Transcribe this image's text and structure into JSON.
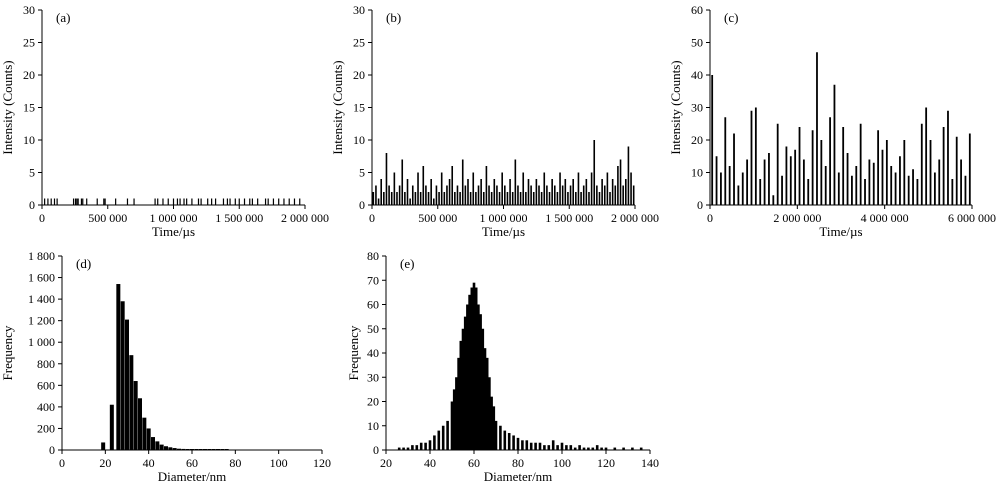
{
  "chart_data": [
    {
      "panel": "(a)",
      "type": "bar",
      "xlabel": "Time/µs",
      "ylabel": "Intensity (Counts)",
      "xlim": [
        0,
        2000000
      ],
      "ylim": [
        0,
        30
      ],
      "xticks": [
        0,
        500000,
        1000000,
        1500000,
        2000000
      ],
      "xtick_labels": [
        "0",
        "500 000",
        "1 000 000",
        "1 500 000",
        "2 000 000"
      ],
      "yticks": [
        0,
        5,
        10,
        15,
        20,
        25,
        30
      ],
      "ytick_labels": [
        "0",
        "5",
        "10",
        "15",
        "20",
        "25",
        "30"
      ],
      "x": [
        20000,
        45000,
        70000,
        95000,
        115000,
        240000,
        255000,
        265000,
        275000,
        300000,
        310000,
        340000,
        420000,
        470000,
        480000,
        560000,
        650000,
        700000,
        860000,
        880000,
        920000,
        960000,
        1000000,
        1030000,
        1050000,
        1080000,
        1100000,
        1140000,
        1190000,
        1210000,
        1260000,
        1290000,
        1320000,
        1380000,
        1410000,
        1430000,
        1470000,
        1500000,
        1540000,
        1580000,
        1600000,
        1640000,
        1700000,
        1720000,
        1760000,
        1800000,
        1840000,
        1880000,
        1920000,
        1960000
      ],
      "values": [
        1,
        1,
        1,
        1,
        1,
        1,
        1,
        1,
        1,
        1,
        1,
        1,
        1,
        1,
        1,
        1,
        1,
        1,
        1,
        1,
        1,
        1,
        1,
        1,
        1,
        1,
        1,
        1,
        1,
        1,
        1,
        1,
        1,
        1,
        1,
        1,
        1,
        1,
        1,
        1,
        1,
        1,
        1,
        1,
        1,
        1,
        1,
        1,
        1,
        1
      ]
    },
    {
      "panel": "(b)",
      "type": "bar",
      "xlabel": "Time/µs",
      "ylabel": "Intensity (Counts)",
      "xlim": [
        0,
        2000000
      ],
      "ylim": [
        0,
        30
      ],
      "xticks": [
        0,
        500000,
        1000000,
        1500000,
        2000000
      ],
      "xtick_labels": [
        "0",
        "500 000",
        "1 000 000",
        "1 500 000",
        "2 000 000"
      ],
      "yticks": [
        0,
        5,
        10,
        15,
        20,
        25,
        30
      ],
      "ytick_labels": [
        "0",
        "5",
        "10",
        "15",
        "20",
        "25",
        "30"
      ],
      "x": [
        10000,
        30000,
        50000,
        70000,
        90000,
        110000,
        130000,
        150000,
        170000,
        190000,
        210000,
        230000,
        250000,
        270000,
        290000,
        310000,
        330000,
        350000,
        370000,
        390000,
        410000,
        430000,
        450000,
        470000,
        490000,
        510000,
        530000,
        550000,
        570000,
        590000,
        610000,
        630000,
        650000,
        670000,
        690000,
        710000,
        730000,
        750000,
        770000,
        790000,
        810000,
        830000,
        850000,
        870000,
        890000,
        910000,
        930000,
        950000,
        970000,
        990000,
        1010000,
        1030000,
        1050000,
        1070000,
        1090000,
        1110000,
        1130000,
        1150000,
        1170000,
        1190000,
        1210000,
        1230000,
        1250000,
        1270000,
        1290000,
        1310000,
        1330000,
        1350000,
        1370000,
        1390000,
        1410000,
        1430000,
        1450000,
        1470000,
        1490000,
        1510000,
        1530000,
        1550000,
        1570000,
        1590000,
        1610000,
        1630000,
        1650000,
        1670000,
        1690000,
        1710000,
        1730000,
        1750000,
        1770000,
        1790000,
        1810000,
        1830000,
        1850000,
        1870000,
        1890000,
        1910000,
        1930000,
        1950000,
        1970000,
        1990000
      ],
      "values": [
        2,
        3,
        1,
        4,
        2,
        8,
        3,
        2,
        5,
        2,
        3,
        7,
        2,
        4,
        1,
        3,
        2,
        5,
        2,
        6,
        3,
        2,
        4,
        1,
        3,
        2,
        5,
        2,
        3,
        4,
        6,
        2,
        3,
        2,
        7,
        3,
        4,
        2,
        5,
        2,
        3,
        4,
        2,
        6,
        3,
        2,
        4,
        3,
        2,
        5,
        3,
        2,
        4,
        2,
        7,
        3,
        2,
        5,
        2,
        4,
        3,
        2,
        4,
        3,
        2,
        5,
        3,
        2,
        4,
        3,
        2,
        5,
        3,
        4,
        2,
        3,
        4,
        2,
        5,
        2,
        3,
        4,
        2,
        5,
        10,
        3,
        2,
        4,
        3,
        5,
        2,
        4,
        3,
        6,
        7,
        3,
        4,
        9,
        5,
        3
      ]
    },
    {
      "panel": "(c)",
      "type": "bar",
      "xlabel": "Time/µs",
      "ylabel": "Intensity (Counts)",
      "xlim": [
        0,
        6000000
      ],
      "ylim": [
        0,
        60
      ],
      "xticks": [
        0,
        2000000,
        4000000,
        6000000
      ],
      "xtick_labels": [
        "0",
        "2 000 000",
        "4 000 000",
        "6 000 000"
      ],
      "yticks": [
        0,
        10,
        20,
        30,
        40,
        50,
        60
      ],
      "ytick_labels": [
        "0",
        "10",
        "20",
        "30",
        "40",
        "50",
        "60"
      ],
      "x": [
        50000,
        150000,
        250000,
        350000,
        450000,
        550000,
        650000,
        750000,
        850000,
        950000,
        1050000,
        1150000,
        1250000,
        1350000,
        1450000,
        1550000,
        1650000,
        1750000,
        1850000,
        1950000,
        2050000,
        2150000,
        2250000,
        2350000,
        2450000,
        2550000,
        2650000,
        2750000,
        2850000,
        2950000,
        3050000,
        3150000,
        3250000,
        3350000,
        3450000,
        3550000,
        3650000,
        3750000,
        3850000,
        3950000,
        4050000,
        4150000,
        4250000,
        4350000,
        4450000,
        4550000,
        4650000,
        4750000,
        4850000,
        4950000,
        5050000,
        5150000,
        5250000,
        5350000,
        5450000,
        5550000,
        5650000,
        5750000,
        5850000,
        5950000
      ],
      "values": [
        40,
        15,
        10,
        27,
        12,
        22,
        6,
        10,
        14,
        29,
        30,
        8,
        14,
        16,
        3,
        25,
        9,
        18,
        15,
        17,
        24,
        14,
        8,
        23,
        47,
        20,
        12,
        27,
        37,
        10,
        24,
        16,
        9,
        12,
        25,
        8,
        14,
        13,
        23,
        17,
        20,
        12,
        10,
        15,
        20,
        9,
        11,
        8,
        25,
        30,
        20,
        10,
        14,
        24,
        29,
        8,
        21,
        14,
        9,
        22
      ]
    },
    {
      "panel": "(d)",
      "type": "bar",
      "xlabel": "Diameter/nm",
      "ylabel": "Frequency",
      "xlim": [
        0,
        120
      ],
      "ylim": [
        0,
        1800
      ],
      "xticks": [
        0,
        20,
        40,
        60,
        80,
        100,
        120
      ],
      "xtick_labels": [
        "0",
        "20",
        "40",
        "60",
        "80",
        "100",
        "120"
      ],
      "yticks": [
        0,
        200,
        400,
        600,
        800,
        1000,
        1200,
        1400,
        1600,
        1800
      ],
      "ytick_labels": [
        "0",
        "200",
        "400",
        "600",
        "800",
        "1 000",
        "1 200",
        "1 400",
        "1 600",
        "1 800"
      ],
      "x": [
        19,
        23,
        26,
        28,
        30,
        32,
        34,
        36,
        38,
        40,
        42,
        44,
        46,
        48,
        50,
        52,
        54,
        56,
        58,
        60,
        62,
        64,
        66,
        68,
        70,
        72,
        74,
        76
      ],
      "values": [
        70,
        420,
        1540,
        1380,
        1210,
        880,
        640,
        480,
        300,
        200,
        120,
        80,
        50,
        35,
        25,
        18,
        12,
        10,
        8,
        6,
        5,
        4,
        3,
        3,
        2,
        2,
        2,
        1
      ]
    },
    {
      "panel": "(e)",
      "type": "bar",
      "xlabel": "Diameter/nm",
      "ylabel": "Frequency",
      "xlim": [
        20,
        140
      ],
      "ylim": [
        0,
        80
      ],
      "xticks": [
        20,
        40,
        60,
        80,
        100,
        120,
        140
      ],
      "xtick_labels": [
        "20",
        "40",
        "60",
        "80",
        "100",
        "120",
        "140"
      ],
      "yticks": [
        0,
        10,
        20,
        30,
        40,
        50,
        60,
        70,
        80
      ],
      "ytick_labels": [
        "0",
        "10",
        "20",
        "30",
        "40",
        "50",
        "60",
        "70",
        "80"
      ],
      "x": [
        26,
        28,
        30,
        32,
        34,
        36,
        38,
        40,
        42,
        44,
        46,
        48,
        50,
        51,
        52,
        53,
        54,
        55,
        56,
        57,
        58,
        59,
        60,
        61,
        62,
        63,
        64,
        65,
        66,
        67,
        68,
        69,
        70,
        72,
        74,
        76,
        78,
        80,
        82,
        84,
        86,
        88,
        90,
        92,
        94,
        96,
        98,
        100,
        102,
        104,
        106,
        108,
        110,
        112,
        114,
        116,
        118,
        120,
        124,
        128,
        132,
        136
      ],
      "values": [
        1,
        1,
        1,
        2,
        2,
        3,
        3,
        4,
        6,
        8,
        10,
        12,
        20,
        25,
        30,
        38,
        45,
        50,
        55,
        60,
        64,
        67,
        69,
        67,
        60,
        56,
        50,
        42,
        38,
        30,
        22,
        18,
        12,
        10,
        8,
        7,
        6,
        5,
        4,
        4,
        3,
        3,
        3,
        2,
        2,
        4,
        2,
        3,
        2,
        2,
        1,
        2,
        1,
        1,
        1,
        2,
        1,
        1,
        1,
        1,
        1,
        1
      ]
    }
  ]
}
